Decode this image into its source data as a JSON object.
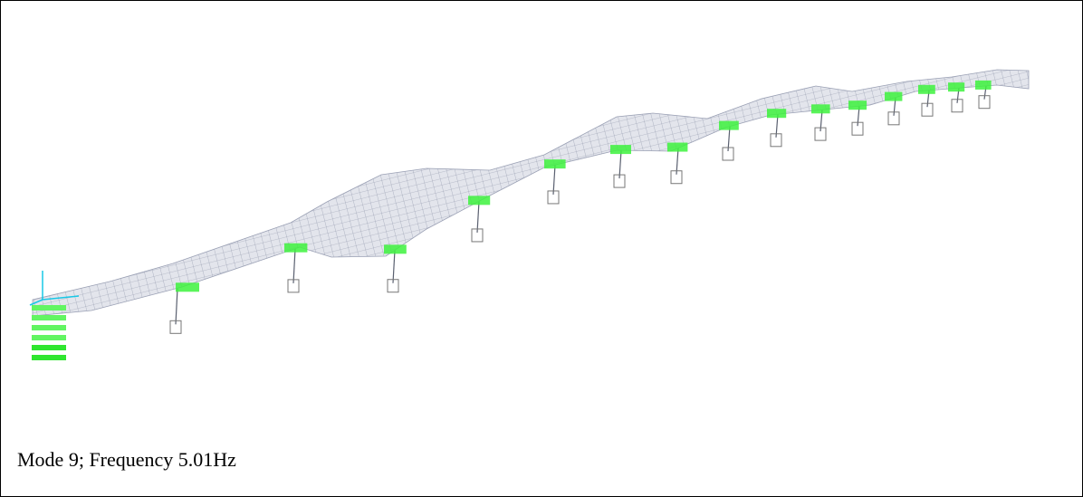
{
  "figure": {
    "caption": "Mode 9; Frequency 5.01Hz"
  }
}
